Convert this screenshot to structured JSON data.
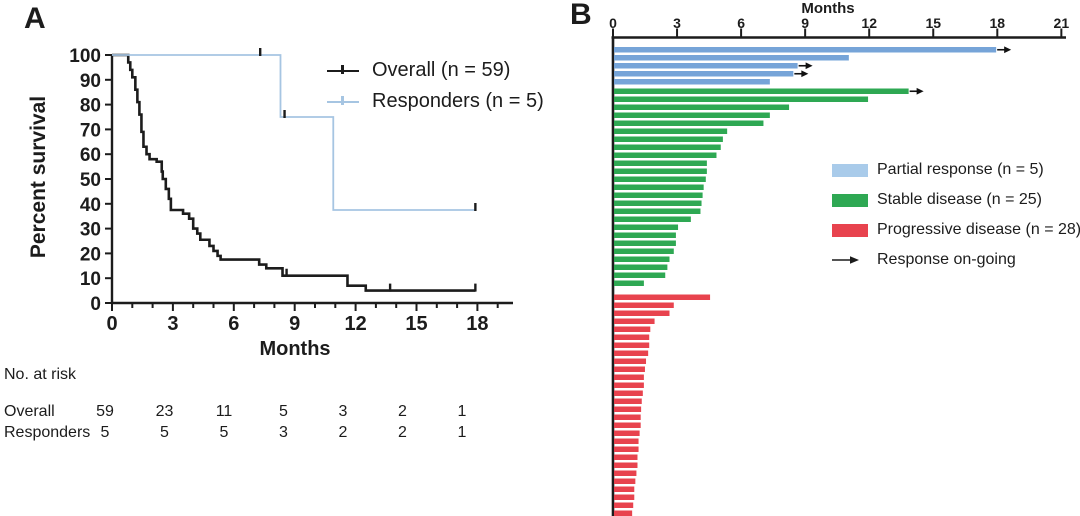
{
  "figure": {
    "panel_a": {
      "label": "A",
      "y_axis_title": "Percent survival",
      "x_axis_title": "Months",
      "legend": [
        {
          "name": "Overall (n = 59)",
          "color": "#1c1c1c"
        },
        {
          "name": "Responders (n = 5)",
          "color": "#a6c5e2"
        }
      ],
      "risk_table": {
        "title": "No. at risk",
        "time_points": [
          0,
          3,
          6,
          9,
          12,
          15,
          18
        ],
        "rows": [
          {
            "label": "Overall",
            "counts": [
              59,
              23,
              11,
              5,
              3,
              2,
              1
            ]
          },
          {
            "label": "Responders",
            "counts": [
              5,
              5,
              5,
              3,
              2,
              2,
              1
            ]
          }
        ]
      }
    },
    "panel_b": {
      "label": "B",
      "axis_title": "Months",
      "legend": [
        {
          "name": "Partial response (n = 5)",
          "color": "#a9cbea"
        },
        {
          "name": "Stable disease (n = 25)",
          "color": "#2ea853"
        },
        {
          "name": "Progressive disease (n = 28)",
          "color": "#e8434e"
        },
        {
          "name": "Response on-going",
          "color": "#1c1c1c"
        }
      ]
    }
  },
  "chart_data": [
    {
      "id": "km_survival",
      "type": "line",
      "subtype": "kaplan-meier",
      "xlabel": "Months",
      "ylabel": "Percent survival",
      "xlim": [
        0,
        19.5
      ],
      "ylim": [
        0,
        100
      ],
      "x_ticks": [
        0,
        3,
        6,
        9,
        12,
        15,
        18
      ],
      "y_ticks": [
        0,
        10,
        20,
        30,
        40,
        50,
        60,
        70,
        80,
        90,
        100
      ],
      "legend_position": "upper right",
      "series": [
        {
          "name": "Overall (n = 59)",
          "color": "#1c1c1c",
          "steps": [
            [
              0,
              100
            ],
            [
              0.8,
              97
            ],
            [
              0.9,
              94
            ],
            [
              1.0,
              91
            ],
            [
              1.15,
              86
            ],
            [
              1.25,
              81
            ],
            [
              1.35,
              76
            ],
            [
              1.45,
              69
            ],
            [
              1.55,
              63
            ],
            [
              1.7,
              60
            ],
            [
              1.85,
              58
            ],
            [
              2.2,
              57
            ],
            [
              2.45,
              53
            ],
            [
              2.5,
              50
            ],
            [
              2.65,
              46
            ],
            [
              2.8,
              42
            ],
            [
              2.9,
              37.5
            ],
            [
              3.5,
              36
            ],
            [
              3.8,
              34
            ],
            [
              4.0,
              30
            ],
            [
              4.2,
              28
            ],
            [
              4.35,
              25.5
            ],
            [
              4.8,
              23
            ],
            [
              5.0,
              21
            ],
            [
              5.2,
              19
            ],
            [
              5.35,
              17.5
            ],
            [
              7.25,
              15.5
            ],
            [
              7.6,
              14
            ],
            [
              8.4,
              11
            ],
            [
              11.6,
              7
            ],
            [
              12.5,
              5
            ],
            [
              17.9,
              5
            ]
          ],
          "censor_ticks": [
            [
              8.6,
              11
            ],
            [
              13.7,
              5
            ],
            [
              17.9,
              5
            ]
          ]
        },
        {
          "name": "Responders (n = 5)",
          "color": "#a6c5e2",
          "steps": [
            [
              0,
              100
            ],
            [
              8.3,
              75
            ],
            [
              10.9,
              37.5
            ],
            [
              17.9,
              37.5
            ]
          ],
          "censor_ticks": [
            [
              7.3,
              100
            ],
            [
              8.5,
              75
            ],
            [
              17.9,
              37.5
            ]
          ]
        }
      ]
    },
    {
      "id": "swimmer_plot",
      "type": "bar",
      "orientation": "horizontal",
      "title": "Months",
      "xlim": [
        0,
        21
      ],
      "x_ticks": [
        0,
        3,
        6,
        9,
        12,
        15,
        18,
        21
      ],
      "legend_position": "right",
      "ongoing_label": "Response on-going",
      "groups": [
        {
          "name": "Partial response (n = 5)",
          "bar_color": "#76a4d8",
          "legend_color": "#a9cbea",
          "values": [
            17.9,
            11.0,
            8.6,
            8.4,
            7.3
          ],
          "ongoing_indices": [
            0,
            2,
            3
          ]
        },
        {
          "name": "Stable disease (n = 25)",
          "bar_color": "#2ea853",
          "legend_color": "#2ea853",
          "values": [
            13.8,
            11.9,
            8.2,
            7.3,
            7.0,
            5.3,
            5.1,
            5.0,
            4.8,
            4.35,
            4.35,
            4.3,
            4.2,
            4.15,
            4.1,
            4.05,
            3.6,
            3.0,
            2.9,
            2.9,
            2.8,
            2.6,
            2.5,
            2.4,
            1.4
          ],
          "ongoing_indices": [
            0
          ]
        },
        {
          "name": "Progressive disease (n = 28)",
          "bar_color": "#e8434e",
          "legend_color": "#e8434e",
          "values": [
            4.5,
            2.8,
            2.6,
            1.9,
            1.7,
            1.65,
            1.65,
            1.6,
            1.5,
            1.45,
            1.4,
            1.4,
            1.35,
            1.3,
            1.27,
            1.25,
            1.25,
            1.2,
            1.15,
            1.15,
            1.1,
            1.1,
            1.05,
            1.0,
            0.95,
            0.95,
            0.9,
            0.85
          ],
          "ongoing_indices": []
        }
      ]
    }
  ]
}
